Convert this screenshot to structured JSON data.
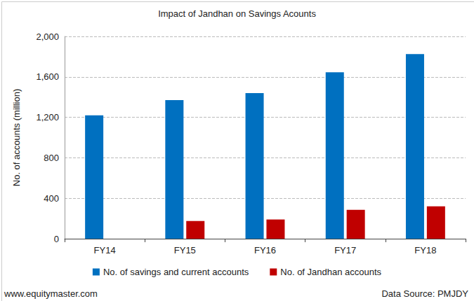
{
  "chart_data": {
    "type": "bar",
    "title": "Impact of Jandhan on Savings Acounts",
    "ylabel": "No. of accounts (million)",
    "categories": [
      "FY14",
      "FY15",
      "FY16",
      "FY17",
      "FY18"
    ],
    "series": [
      {
        "name": "No. of savings and current accounts",
        "color": "#0070c0",
        "values": [
          1220,
          1370,
          1440,
          1645,
          1825
        ]
      },
      {
        "name": "No. of Jandhan accounts",
        "color": "#c00000",
        "values": [
          null,
          175,
          190,
          285,
          320
        ]
      }
    ],
    "ylim": [
      0,
      2000
    ],
    "yticks": [
      0,
      400,
      800,
      {
        "value": 1200,
        "label": "1,200"
      },
      {
        "value": 1600,
        "label": "1,600"
      },
      {
        "value": 2000,
        "label": "2,000"
      }
    ],
    "grid": true,
    "legend": "bottom",
    "annotations": [
      {
        "text": "www.equitymaster.com"
      },
      {
        "text": "Data Source: PMJDY"
      }
    ]
  }
}
